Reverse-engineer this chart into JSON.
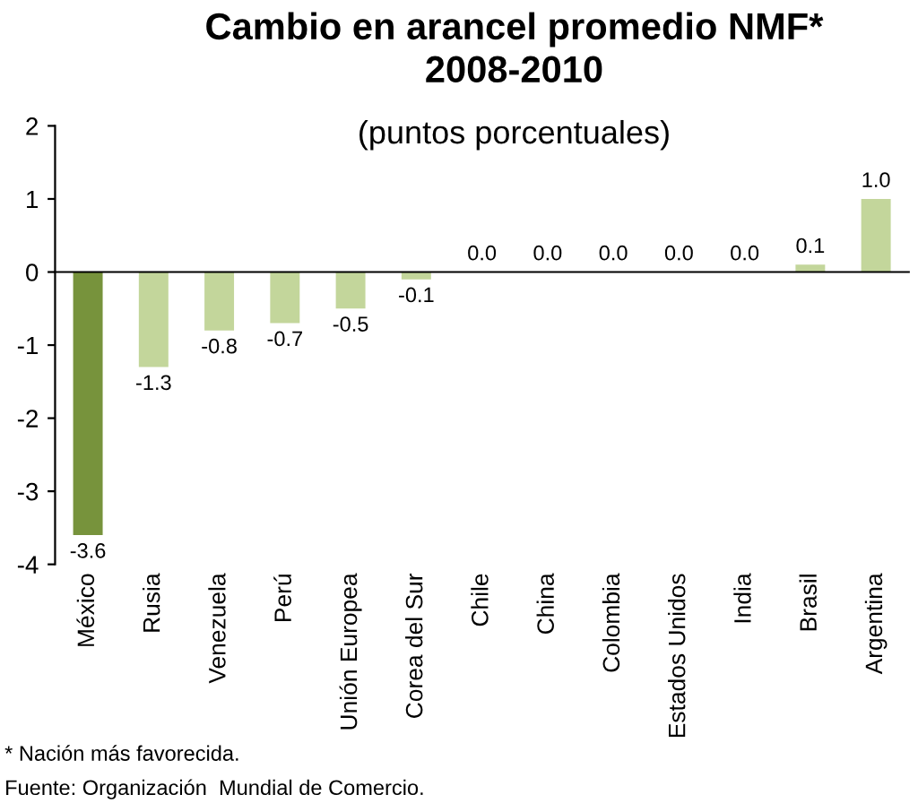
{
  "chart_data": {
    "type": "bar",
    "title": "Cambio en arancel promedio NMF*\n2008-2010",
    "subtitle": "(puntos porcentuales)",
    "categories": [
      "México",
      "Rusia",
      "Venezuela",
      "Perú",
      "Unión Europea",
      "Corea del Sur",
      "Chile",
      "China",
      "Colombia",
      "Estados Unidos",
      "India",
      "Brasil",
      "Argentina"
    ],
    "values": [
      -3.6,
      -1.3,
      -0.8,
      -0.7,
      -0.5,
      -0.1,
      0.0,
      0.0,
      0.0,
      0.0,
      0.0,
      0.1,
      1.0
    ],
    "colors": [
      "#77933c",
      "#c3d69b",
      "#c3d69b",
      "#c3d69b",
      "#c3d69b",
      "#c3d69b",
      "#c3d69b",
      "#c3d69b",
      "#c3d69b",
      "#c3d69b",
      "#c3d69b",
      "#c3d69b",
      "#c3d69b"
    ],
    "value_labels": [
      "-3.6",
      "-1.3",
      "-0.8",
      "-0.7",
      "-0.5",
      "-0.1",
      "0.0",
      "0.0",
      "0.0",
      "0.0",
      "0.0",
      "0.1",
      "1.0"
    ],
    "ylim": [
      -4,
      2
    ],
    "yticks": [
      -4,
      -3,
      -2,
      -1,
      0,
      1,
      2
    ],
    "legend": false,
    "annotations": [
      "* Nación más favorecida.",
      "Fuente: Organización  Mundial de Comercio."
    ]
  }
}
